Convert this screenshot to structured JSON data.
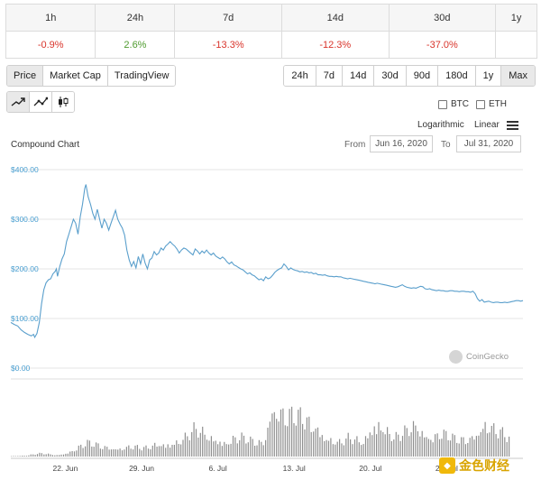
{
  "performance": {
    "periods": [
      "1h",
      "24h",
      "7d",
      "14d",
      "30d",
      "1y"
    ],
    "changes": [
      "-0.9%",
      "2.6%",
      "-13.3%",
      "-12.3%",
      "-37.0%",
      ""
    ]
  },
  "toolbar": {
    "chart_types": [
      "Price",
      "Market Cap",
      "TradingView"
    ],
    "ranges": [
      "24h",
      "7d",
      "14d",
      "30d",
      "90d",
      "180d",
      "1y",
      "Max"
    ],
    "compare": [
      "BTC",
      "ETH"
    ],
    "scales": [
      "Logarithmic",
      "Linear"
    ]
  },
  "chart_header": {
    "title": "Compound Chart",
    "from_label": "From",
    "from_date": "Jun 16, 2020",
    "to_label": "To",
    "to_date": "Jul 31, 2020"
  },
  "watermark": "CoinGecko",
  "watermark2": "金色财经",
  "colors": {
    "line": "#5a9fcc",
    "volume": "#8f8f8f",
    "negative": "#d9342b",
    "positive": "#4f9b2f"
  },
  "chart_data": {
    "type": "line",
    "title": "Compound Chart",
    "xlabel": "",
    "ylabel": "",
    "ylim": [
      0,
      400
    ],
    "yticks": [
      0,
      100,
      200,
      300,
      400
    ],
    "ytick_labels": [
      "$0.00",
      "$100.00",
      "$200.00",
      "$300.00",
      "$400.00"
    ],
    "x_range_days": [
      0,
      45
    ],
    "xtick_days": [
      6,
      13,
      20,
      27,
      34,
      41
    ],
    "xtick_labels": [
      "22. Jun",
      "29. Jun",
      "6. Jul",
      "13. Jul",
      "20. Jul",
      "27. Jul"
    ],
    "series": [
      {
        "name": "Price (USD)",
        "points": [
          [
            0,
            92
          ],
          [
            0.3,
            88
          ],
          [
            0.6,
            85
          ],
          [
            0.9,
            77
          ],
          [
            1.2,
            72
          ],
          [
            1.5,
            68
          ],
          [
            1.8,
            65
          ],
          [
            2,
            68
          ],
          [
            2.1,
            62
          ],
          [
            2.3,
            70
          ],
          [
            2.5,
            92
          ],
          [
            2.7,
            130
          ],
          [
            2.9,
            158
          ],
          [
            3.1,
            172
          ],
          [
            3.3,
            178
          ],
          [
            3.5,
            180
          ],
          [
            3.7,
            190
          ],
          [
            3.9,
            195
          ],
          [
            4,
            200
          ],
          [
            4.1,
            185
          ],
          [
            4.3,
            205
          ],
          [
            4.5,
            220
          ],
          [
            4.7,
            230
          ],
          [
            4.9,
            255
          ],
          [
            5.1,
            270
          ],
          [
            5.3,
            285
          ],
          [
            5.5,
            300
          ],
          [
            5.7,
            292
          ],
          [
            5.9,
            270
          ],
          [
            6.1,
            305
          ],
          [
            6.3,
            330
          ],
          [
            6.5,
            362
          ],
          [
            6.6,
            370
          ],
          [
            6.8,
            345
          ],
          [
            7,
            330
          ],
          [
            7.2,
            312
          ],
          [
            7.4,
            300
          ],
          [
            7.6,
            320
          ],
          [
            7.8,
            300
          ],
          [
            8,
            282
          ],
          [
            8.2,
            300
          ],
          [
            8.4,
            292
          ],
          [
            8.6,
            278
          ],
          [
            8.8,
            292
          ],
          [
            9,
            305
          ],
          [
            9.2,
            318
          ],
          [
            9.4,
            300
          ],
          [
            9.6,
            290
          ],
          [
            9.8,
            282
          ],
          [
            10,
            268
          ],
          [
            10.2,
            238
          ],
          [
            10.4,
            218
          ],
          [
            10.6,
            205
          ],
          [
            10.8,
            215
          ],
          [
            11,
            202
          ],
          [
            11.2,
            225
          ],
          [
            11.4,
            210
          ],
          [
            11.6,
            230
          ],
          [
            11.8,
            212
          ],
          [
            12,
            200
          ],
          [
            12.2,
            218
          ],
          [
            12.4,
            222
          ],
          [
            12.6,
            235
          ],
          [
            12.8,
            228
          ],
          [
            13,
            232
          ],
          [
            13.2,
            242
          ],
          [
            13.4,
            238
          ],
          [
            13.6,
            246
          ],
          [
            13.8,
            250
          ],
          [
            14,
            255
          ],
          [
            14.2,
            250
          ],
          [
            14.4,
            246
          ],
          [
            14.6,
            240
          ],
          [
            14.8,
            232
          ],
          [
            15,
            238
          ],
          [
            15.2,
            242
          ],
          [
            15.4,
            240
          ],
          [
            15.6,
            236
          ],
          [
            15.8,
            232
          ],
          [
            16,
            228
          ],
          [
            16.2,
            240
          ],
          [
            16.4,
            236
          ],
          [
            16.6,
            230
          ],
          [
            16.8,
            236
          ],
          [
            17,
            232
          ],
          [
            17.2,
            238
          ],
          [
            17.4,
            232
          ],
          [
            17.6,
            228
          ],
          [
            17.8,
            232
          ],
          [
            18,
            226
          ],
          [
            18.2,
            223
          ],
          [
            18.4,
            220
          ],
          [
            18.6,
            224
          ],
          [
            18.8,
            220
          ],
          [
            19,
            214
          ],
          [
            19.2,
            210
          ],
          [
            19.4,
            214
          ],
          [
            19.6,
            208
          ],
          [
            19.8,
            206
          ],
          [
            20,
            203
          ],
          [
            20.2,
            200
          ],
          [
            20.4,
            198
          ],
          [
            20.6,
            194
          ],
          [
            20.8,
            190
          ],
          [
            21,
            192
          ],
          [
            21.2,
            188
          ],
          [
            21.4,
            186
          ],
          [
            21.6,
            182
          ],
          [
            21.8,
            178
          ],
          [
            22,
            180
          ],
          [
            22.2,
            176
          ],
          [
            22.4,
            184
          ],
          [
            22.6,
            180
          ],
          [
            22.8,
            182
          ],
          [
            23,
            187
          ],
          [
            23.2,
            193
          ],
          [
            23.4,
            197
          ],
          [
            23.6,
            200
          ],
          [
            23.8,
            202
          ],
          [
            24,
            210
          ],
          [
            24.2,
            205
          ],
          [
            24.4,
            198
          ],
          [
            24.6,
            202
          ],
          [
            24.8,
            199
          ],
          [
            25,
            197
          ],
          [
            25.2,
            196
          ],
          [
            25.4,
            194
          ],
          [
            25.6,
            195
          ],
          [
            25.8,
            193
          ],
          [
            26,
            194
          ],
          [
            26.2,
            192
          ],
          [
            26.4,
            193
          ],
          [
            26.6,
            190
          ],
          [
            26.8,
            191
          ],
          [
            27,
            188
          ],
          [
            27.2,
            188
          ],
          [
            27.4,
            187
          ],
          [
            27.6,
            188
          ],
          [
            27.8,
            186
          ],
          [
            28,
            185
          ],
          [
            28.2,
            185
          ],
          [
            28.4,
            184
          ],
          [
            28.6,
            185
          ],
          [
            28.8,
            184
          ],
          [
            29,
            184
          ],
          [
            29.2,
            182
          ],
          [
            29.4,
            181
          ],
          [
            29.6,
            180
          ],
          [
            29.8,
            181
          ],
          [
            30,
            180
          ],
          [
            30.2,
            179
          ],
          [
            30.4,
            178
          ],
          [
            30.6,
            177
          ],
          [
            30.8,
            176
          ],
          [
            31,
            175
          ],
          [
            31.2,
            174
          ],
          [
            31.4,
            173
          ],
          [
            31.6,
            172
          ],
          [
            31.8,
            171
          ],
          [
            32,
            170
          ],
          [
            32.2,
            171
          ],
          [
            32.4,
            170
          ],
          [
            32.6,
            169
          ],
          [
            32.8,
            168
          ],
          [
            33,
            167
          ],
          [
            33.2,
            166
          ],
          [
            33.4,
            165
          ],
          [
            33.6,
            164
          ],
          [
            33.8,
            163
          ],
          [
            34,
            164
          ],
          [
            34.2,
            166
          ],
          [
            34.4,
            168
          ],
          [
            34.6,
            165
          ],
          [
            34.8,
            163
          ],
          [
            35,
            162
          ],
          [
            35.2,
            161
          ],
          [
            35.4,
            162
          ],
          [
            35.6,
            161
          ],
          [
            35.8,
            163
          ],
          [
            36,
            165
          ],
          [
            36.2,
            164
          ],
          [
            36.4,
            160
          ],
          [
            36.6,
            159
          ],
          [
            36.8,
            160
          ],
          [
            37,
            158
          ],
          [
            37.2,
            157
          ],
          [
            37.4,
            156
          ],
          [
            37.6,
            157
          ],
          [
            37.8,
            156
          ],
          [
            38,
            156
          ],
          [
            38.2,
            155
          ],
          [
            38.4,
            155
          ],
          [
            38.6,
            156
          ],
          [
            38.8,
            156
          ],
          [
            39,
            155
          ],
          [
            39.2,
            155
          ],
          [
            39.4,
            154
          ],
          [
            39.6,
            155
          ],
          [
            39.8,
            155
          ],
          [
            40,
            154
          ],
          [
            40.2,
            154
          ],
          [
            40.4,
            153
          ],
          [
            40.6,
            155
          ],
          [
            40.8,
            150
          ],
          [
            41,
            140
          ],
          [
            41.2,
            135
          ],
          [
            41.4,
            138
          ],
          [
            41.6,
            133
          ],
          [
            41.8,
            134
          ],
          [
            42,
            135
          ],
          [
            42.2,
            133
          ],
          [
            42.4,
            132
          ],
          [
            42.6,
            133
          ],
          [
            42.8,
            133
          ],
          [
            43,
            132
          ],
          [
            43.2,
            132
          ],
          [
            43.4,
            133
          ],
          [
            43.6,
            132
          ],
          [
            43.8,
            133
          ],
          [
            44,
            134
          ],
          [
            44.2,
            135
          ],
          [
            44.4,
            136
          ],
          [
            44.6,
            136
          ],
          [
            44.8,
            135
          ],
          [
            45,
            136
          ]
        ]
      }
    ],
    "volume": {
      "name": "Volume (relative, 0-1)",
      "points": [
        [
          0,
          0.01
        ],
        [
          2,
          0.02
        ],
        [
          3,
          0.05
        ],
        [
          4,
          0.07
        ],
        [
          5,
          0.05
        ],
        [
          6,
          0.03
        ],
        [
          7,
          0.06
        ],
        [
          8,
          0.12
        ],
        [
          9,
          0.22
        ],
        [
          10,
          0.3
        ],
        [
          11,
          0.26
        ],
        [
          12,
          0.22
        ],
        [
          13,
          0.18
        ],
        [
          14,
          0.16
        ],
        [
          15,
          0.2
        ],
        [
          16,
          0.22
        ],
        [
          17,
          0.18
        ],
        [
          18,
          0.2
        ],
        [
          19,
          0.27
        ],
        [
          20,
          0.25
        ],
        [
          21,
          0.28
        ],
        [
          22,
          0.32
        ],
        [
          23,
          0.45
        ],
        [
          24,
          0.6
        ],
        [
          25,
          0.52
        ],
        [
          26,
          0.4
        ],
        [
          27,
          0.35
        ],
        [
          28,
          0.28
        ],
        [
          29,
          0.38
        ],
        [
          30,
          0.42
        ],
        [
          31,
          0.36
        ],
        [
          32,
          0.32
        ],
        [
          33,
          0.3
        ],
        [
          34,
          0.98
        ],
        [
          34.6,
          1.0
        ],
        [
          35,
          0.96
        ],
        [
          36,
          0.9
        ],
        [
          37,
          0.88
        ],
        [
          38,
          0.86
        ],
        [
          39,
          0.72
        ],
        [
          40,
          0.6
        ],
        [
          41,
          0.4
        ],
        [
          42,
          0.34
        ],
        [
          43,
          0.3
        ],
        [
          44,
          0.4
        ],
        [
          45,
          0.36
        ],
        [
          46,
          0.3
        ],
        [
          47,
          0.62
        ],
        [
          48,
          0.7
        ],
        [
          49,
          0.55
        ],
        [
          50,
          0.4
        ],
        [
          51,
          0.48
        ],
        [
          52,
          0.62
        ],
        [
          53,
          0.68
        ],
        [
          54,
          0.45
        ],
        [
          55,
          0.4
        ],
        [
          56,
          0.52
        ],
        [
          57,
          0.46
        ],
        [
          58,
          0.38
        ],
        [
          59,
          0.36
        ],
        [
          60,
          0.4
        ],
        [
          61,
          0.52
        ],
        [
          62,
          0.72
        ],
        [
          63,
          0.6
        ],
        [
          64,
          0.52
        ],
        [
          65,
          0.4
        ]
      ]
    }
  }
}
